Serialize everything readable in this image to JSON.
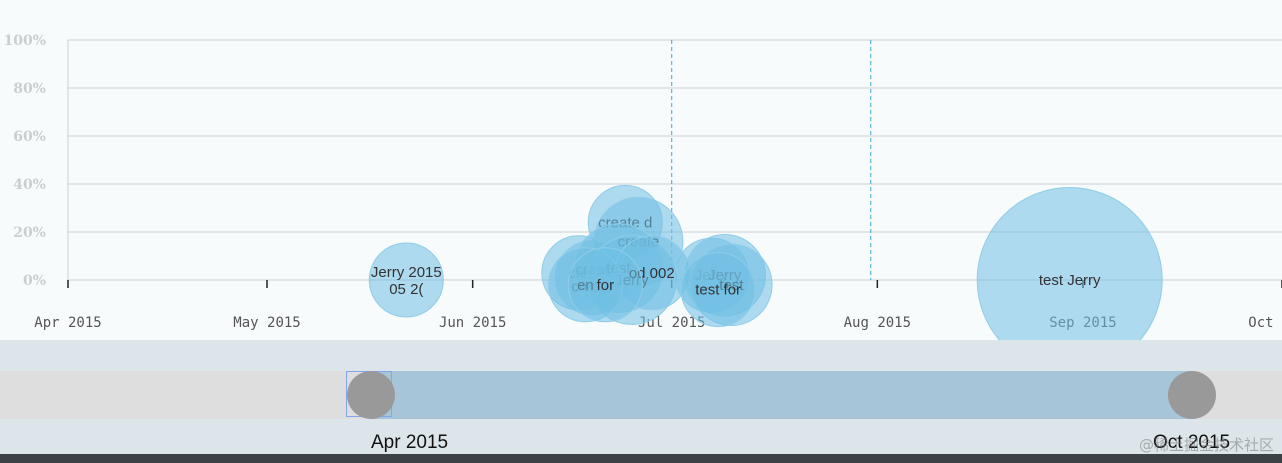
{
  "chart_data": {
    "type": "scatter",
    "subtype": "bubble-timeline",
    "title": "",
    "xlabel": "",
    "ylabel": "",
    "x_ticks": [
      "Apr 2015",
      "May 2015",
      "Jun 2015",
      "Jul 2015",
      "Aug 2015",
      "Sep 2015",
      "Oct 2015"
    ],
    "x_range": [
      "2015-04-01",
      "2015-10-01"
    ],
    "y_ticks": [
      "100%",
      "80%",
      "60%",
      "40%",
      "20%",
      "0%"
    ],
    "ylim": [
      0,
      100
    ],
    "grid": true,
    "dashed_markers": [
      "2015-07-01",
      "2015-07-31"
    ],
    "bubble_color": "#6fbfe3",
    "points": [
      {
        "x": "2015-05-22",
        "y": 0,
        "size": 1,
        "label": "Jerry 2015 05 2("
      },
      {
        "x": "2015-06-24",
        "y": 24,
        "size": 1,
        "label": "create d"
      },
      {
        "x": "2015-06-26",
        "y": 16,
        "size": 1.2,
        "label": "create"
      },
      {
        "x": "2015-06-17",
        "y": 3,
        "size": 1,
        "label": "cre"
      },
      {
        "x": "2015-06-19",
        "y": 1,
        "size": 1,
        "label": "creat create"
      },
      {
        "x": "2015-06-23",
        "y": 5,
        "size": 1.2,
        "label": "test"
      },
      {
        "x": "2015-06-25",
        "y": 0,
        "size": 1.2,
        "label": "Jerry"
      },
      {
        "x": "2015-06-28",
        "y": 3,
        "size": 1,
        "label": "od 002"
      },
      {
        "x": "2015-06-18",
        "y": -2,
        "size": 1,
        "label": "en"
      },
      {
        "x": "2015-06-21",
        "y": -2,
        "size": 1,
        "label": "for"
      },
      {
        "x": "2015-07-07",
        "y": 2,
        "size": 1,
        "label": "Jerry"
      },
      {
        "x": "2015-07-09",
        "y": 2,
        "size": 1.1,
        "label": "Jerry"
      },
      {
        "x": "2015-07-10",
        "y": -2,
        "size": 1.1,
        "label": "test"
      },
      {
        "x": "2015-07-08",
        "y": -4,
        "size": 1,
        "label": "test for"
      },
      {
        "x": "2015-08-30",
        "y": 0,
        "size": 2.5,
        "label": "test Jerry"
      }
    ]
  },
  "slider": {
    "start_label": "Apr 2015",
    "end_label": "Oct 2015"
  },
  "watermark": "@稀土掘金技术社区"
}
